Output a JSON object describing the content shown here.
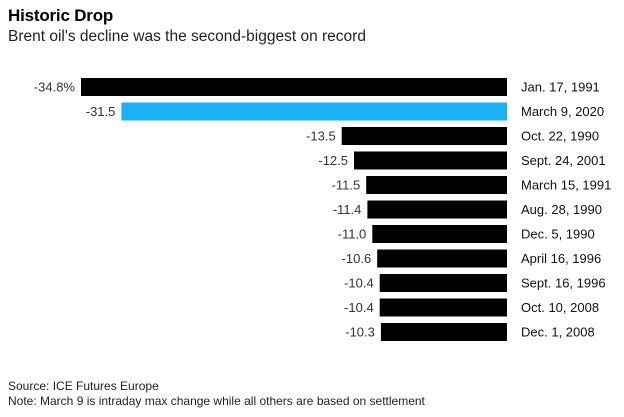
{
  "title": "Historic Drop",
  "subtitle": "Brent oil's decline was the second-biggest on record",
  "source": "Source: ICE Futures Europe",
  "note": "Note: March 9 is intraday max change while all others are based on settlement",
  "colors": {
    "default_bar": "#000000",
    "highlight_bar": "#1ab2f5"
  },
  "chart_data": {
    "type": "bar",
    "orientation": "horizontal",
    "categories": [
      "Jan. 17, 1991",
      "March 9, 2020",
      "Oct. 22, 1990",
      "Sept. 24, 2001",
      "March 15, 1991",
      "Aug. 28, 1990",
      "Dec. 5, 1990",
      "April 16, 1996",
      "Sept. 16, 1996",
      "Oct. 10, 2008",
      "Dec. 1, 2008"
    ],
    "values": [
      -34.8,
      -31.5,
      -13.5,
      -12.5,
      -11.5,
      -11.4,
      -11.0,
      -10.6,
      -10.4,
      -10.4,
      -10.3
    ],
    "value_labels": [
      "-34.8%",
      "-31.5",
      "-13.5",
      "-12.5",
      "-11.5",
      "-11.4",
      "-11.0",
      "-10.6",
      "-10.4",
      "-10.4",
      "-10.3"
    ],
    "highlight_index": 1,
    "title": "Historic Drop",
    "subtitle": "Brent oil's decline was the second-biggest on record",
    "xlabel": "",
    "ylabel": "",
    "grid": false,
    "legend": "none"
  }
}
